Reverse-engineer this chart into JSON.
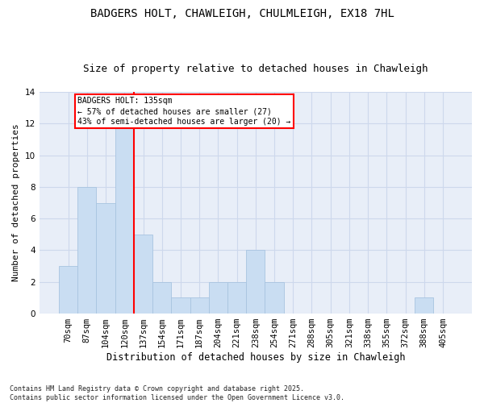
{
  "title": "BADGERS HOLT, CHAWLEIGH, CHULMLEIGH, EX18 7HL",
  "subtitle": "Size of property relative to detached houses in Chawleigh",
  "xlabel": "Distribution of detached houses by size in Chawleigh",
  "ylabel": "Number of detached properties",
  "categories": [
    "70sqm",
    "87sqm",
    "104sqm",
    "120sqm",
    "137sqm",
    "154sqm",
    "171sqm",
    "187sqm",
    "204sqm",
    "221sqm",
    "238sqm",
    "254sqm",
    "271sqm",
    "288sqm",
    "305sqm",
    "321sqm",
    "338sqm",
    "355sqm",
    "372sqm",
    "388sqm",
    "405sqm"
  ],
  "values": [
    3,
    8,
    7,
    12,
    5,
    2,
    1,
    1,
    2,
    2,
    4,
    2,
    0,
    0,
    0,
    0,
    0,
    0,
    0,
    1,
    0
  ],
  "bar_color": "#c9ddf2",
  "bar_edge_color": "#a8c4e0",
  "grid_color": "#cdd8ec",
  "background_color": "#e8eef8",
  "annotation_text": "BADGERS HOLT: 135sqm\n← 57% of detached houses are smaller (27)\n43% of semi-detached houses are larger (20) →",
  "vline_pos": 3.5,
  "ylim": [
    0,
    14
  ],
  "yticks": [
    0,
    2,
    4,
    6,
    8,
    10,
    12,
    14
  ],
  "footer": "Contains HM Land Registry data © Crown copyright and database right 2025.\nContains public sector information licensed under the Open Government Licence v3.0.",
  "title_fontsize": 10,
  "subtitle_fontsize": 9,
  "xlabel_fontsize": 8.5,
  "ylabel_fontsize": 8,
  "tick_fontsize": 7.5,
  "annotation_fontsize": 7,
  "footer_fontsize": 6
}
